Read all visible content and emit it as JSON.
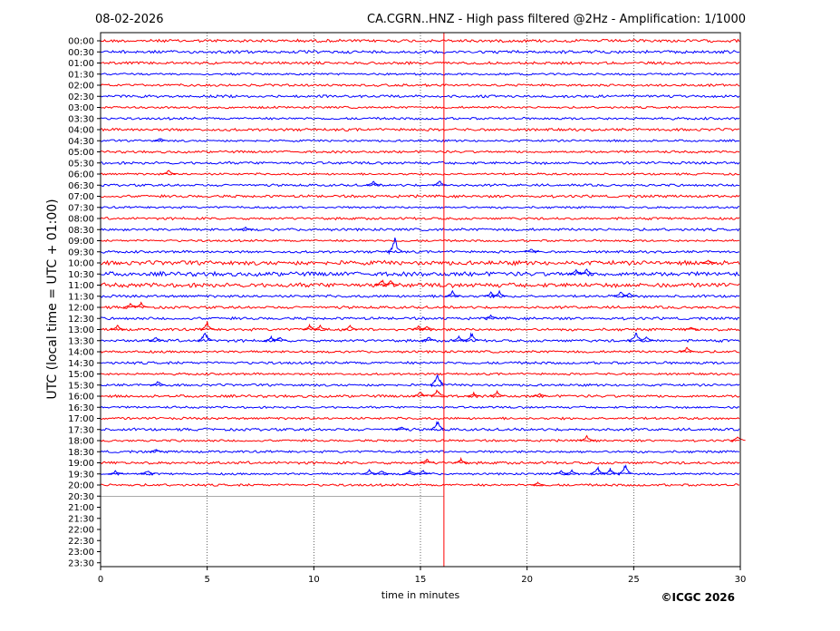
{
  "chart_data": {
    "type": "line",
    "title_left": "08-02-2026",
    "title_right": "CA.CGRN..HNZ - High pass filtered @2Hz - Amplification: 1/1000",
    "xlabel": "time in minutes",
    "ylabel": "UTC (local time = UTC + 01:00)",
    "xlim": [
      0,
      30
    ],
    "x_ticks": [
      "0",
      "5",
      "10",
      "15",
      "20",
      "25",
      "30"
    ],
    "y_ticks": [
      "00:00",
      "00:30",
      "01:00",
      "01:30",
      "02:00",
      "02:30",
      "03:00",
      "03:30",
      "04:00",
      "04:30",
      "05:00",
      "05:30",
      "06:00",
      "06:30",
      "07:00",
      "07:30",
      "08:00",
      "08:30",
      "09:00",
      "09:30",
      "10:00",
      "10:30",
      "11:00",
      "11:30",
      "12:00",
      "12:30",
      "13:00",
      "13:30",
      "14:00",
      "14:30",
      "15:00",
      "15:30",
      "16:00",
      "16:30",
      "17:00",
      "17:30",
      "18:00",
      "18:30",
      "19:00",
      "19:30",
      "20:00",
      "20:30",
      "21:00",
      "21:30",
      "22:00",
      "22:30",
      "23:00",
      "23:30"
    ],
    "grid_x": "dotted",
    "colors": {
      "even_trace": "#ff0000",
      "odd_trace": "#0000ff",
      "current_time_marker": "#ff0000"
    },
    "current_time_minute": 16.1,
    "last_full_trace": "20:00",
    "partial_trace": "20:30",
    "events": [
      {
        "trace": "04:30",
        "minute": 2.8,
        "amp": 4
      },
      {
        "trace": "06:00",
        "minute": 3.2,
        "amp": 5
      },
      {
        "trace": "06:30",
        "minute": 12.8,
        "amp": 5
      },
      {
        "trace": "06:30",
        "minute": 15.9,
        "amp": 6
      },
      {
        "trace": "08:30",
        "minute": 6.8,
        "amp": 3
      },
      {
        "trace": "09:30",
        "minute": 13.8,
        "amp": 18
      },
      {
        "trace": "09:30",
        "minute": 20.2,
        "amp": 4
      },
      {
        "trace": "10:00",
        "minute": 28.5,
        "amp": 4
      },
      {
        "trace": "10:30",
        "minute": 22.3,
        "amp": 6
      },
      {
        "trace": "10:30",
        "minute": 22.8,
        "amp": 7
      },
      {
        "trace": "11:00",
        "minute": 13.2,
        "amp": 7
      },
      {
        "trace": "11:00",
        "minute": 13.6,
        "amp": 6
      },
      {
        "trace": "11:30",
        "minute": 16.5,
        "amp": 6
      },
      {
        "trace": "11:30",
        "minute": 18.3,
        "amp": 5
      },
      {
        "trace": "11:30",
        "minute": 18.7,
        "amp": 6
      },
      {
        "trace": "11:30",
        "minute": 24.4,
        "amp": 6
      },
      {
        "trace": "11:30",
        "minute": 24.8,
        "amp": 4
      },
      {
        "trace": "12:00",
        "minute": 1.4,
        "amp": 5
      },
      {
        "trace": "12:00",
        "minute": 1.9,
        "amp": 6
      },
      {
        "trace": "12:30",
        "minute": 18.3,
        "amp": 5
      },
      {
        "trace": "13:00",
        "minute": 0.8,
        "amp": 5
      },
      {
        "trace": "13:00",
        "minute": 5.0,
        "amp": 10
      },
      {
        "trace": "13:00",
        "minute": 9.8,
        "amp": 6
      },
      {
        "trace": "13:00",
        "minute": 10.3,
        "amp": 5
      },
      {
        "trace": "13:00",
        "minute": 11.7,
        "amp": 5
      },
      {
        "trace": "13:00",
        "minute": 14.9,
        "amp": 5
      },
      {
        "trace": "13:00",
        "minute": 15.3,
        "amp": 5
      },
      {
        "trace": "13:00",
        "minute": 27.7,
        "amp": 4
      },
      {
        "trace": "13:30",
        "minute": 2.6,
        "amp": 5
      },
      {
        "trace": "13:30",
        "minute": 4.9,
        "amp": 14
      },
      {
        "trace": "13:30",
        "minute": 8.0,
        "amp": 5
      },
      {
        "trace": "13:30",
        "minute": 8.4,
        "amp": 5
      },
      {
        "trace": "13:30",
        "minute": 15.4,
        "amp": 6
      },
      {
        "trace": "13:30",
        "minute": 16.8,
        "amp": 5
      },
      {
        "trace": "13:30",
        "minute": 17.4,
        "amp": 10
      },
      {
        "trace": "13:30",
        "minute": 25.1,
        "amp": 12
      },
      {
        "trace": "13:30",
        "minute": 25.6,
        "amp": 5
      },
      {
        "trace": "14:00",
        "minute": 27.5,
        "amp": 6
      },
      {
        "trace": "15:30",
        "minute": 2.7,
        "amp": 5
      },
      {
        "trace": "15:30",
        "minute": 15.8,
        "amp": 16
      },
      {
        "trace": "16:00",
        "minute": 15.0,
        "amp": 6
      },
      {
        "trace": "16:00",
        "minute": 15.8,
        "amp": 10
      },
      {
        "trace": "16:00",
        "minute": 17.5,
        "amp": 4
      },
      {
        "trace": "16:00",
        "minute": 18.6,
        "amp": 6
      },
      {
        "trace": "16:00",
        "minute": 20.6,
        "amp": 4
      },
      {
        "trace": "17:30",
        "minute": 14.1,
        "amp": 4
      },
      {
        "trace": "17:30",
        "minute": 15.8,
        "amp": 12
      },
      {
        "trace": "18:00",
        "minute": 22.8,
        "amp": 6
      },
      {
        "trace": "18:00",
        "minute": 29.9,
        "amp": 6
      },
      {
        "trace": "18:30",
        "minute": 2.6,
        "amp": 3
      },
      {
        "trace": "19:00",
        "minute": 15.3,
        "amp": 5
      },
      {
        "trace": "19:00",
        "minute": 16.9,
        "amp": 5
      },
      {
        "trace": "19:30",
        "minute": 0.7,
        "amp": 4
      },
      {
        "trace": "19:30",
        "minute": 2.2,
        "amp": 5
      },
      {
        "trace": "19:30",
        "minute": 12.6,
        "amp": 5
      },
      {
        "trace": "19:30",
        "minute": 13.2,
        "amp": 5
      },
      {
        "trace": "19:30",
        "minute": 14.5,
        "amp": 5
      },
      {
        "trace": "19:30",
        "minute": 15.1,
        "amp": 5
      },
      {
        "trace": "19:30",
        "minute": 21.6,
        "amp": 4
      },
      {
        "trace": "19:30",
        "minute": 22.1,
        "amp": 5
      },
      {
        "trace": "19:30",
        "minute": 23.3,
        "amp": 10
      },
      {
        "trace": "19:30",
        "minute": 23.9,
        "amp": 7
      },
      {
        "trace": "19:30",
        "minute": 24.6,
        "amp": 14
      },
      {
        "trace": "20:00",
        "minute": 20.5,
        "amp": 3
      }
    ]
  },
  "footer": {
    "copyright": "©ICGC 2026"
  }
}
